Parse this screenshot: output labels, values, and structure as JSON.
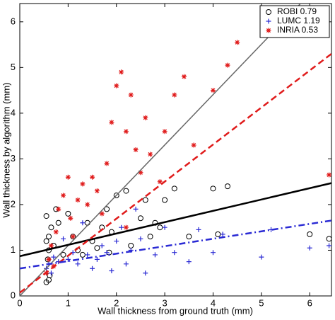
{
  "chart_data": {
    "type": "scatter",
    "xlabel": "Wall thickness from ground truth (mm)",
    "ylabel": "Wall thickness by algorithm (mm)",
    "xlim": [
      0,
      6.45
    ],
    "ylim": [
      0,
      6.4
    ],
    "xticks": [
      0,
      1,
      2,
      3,
      4,
      5,
      6
    ],
    "yticks": [
      0,
      1,
      2,
      3,
      4,
      5,
      6
    ],
    "grid": false,
    "legend": "upper right",
    "series": [
      {
        "name": "ROBI 0.79",
        "color": "#000000",
        "marker": "circle",
        "x": [
          0.55,
          0.6,
          0.62,
          0.58,
          0.6,
          0.55,
          0.6,
          0.65,
          0.55,
          0.7,
          0.75,
          0.8,
          1.0,
          1.1,
          1.2,
          1.3,
          1.4,
          1.5,
          1.6,
          1.7,
          1.8,
          1.9,
          2.0,
          2.2,
          2.3,
          2.5,
          2.6,
          2.7,
          2.8,
          3.0,
          3.2,
          3.5,
          4.0,
          4.1,
          4.3,
          6.0,
          6.4,
          0.9,
          1.85,
          2.9
        ],
        "values": [
          0.3,
          0.35,
          0.45,
          0.8,
          1.0,
          1.2,
          1.3,
          1.5,
          1.75,
          1.1,
          1.9,
          1.6,
          1.8,
          1.3,
          1.0,
          0.9,
          1.6,
          1.2,
          1.05,
          1.5,
          1.9,
          1.4,
          2.2,
          2.3,
          1.1,
          1.7,
          2.1,
          1.3,
          1.6,
          2.1,
          2.35,
          1.3,
          2.35,
          1.35,
          2.4,
          1.35,
          1.25,
          0.9,
          0.95,
          1.5
        ]
      },
      {
        "name": "LUMC 1.19",
        "color": "#2a2ad4",
        "marker": "plus",
        "x": [
          0.55,
          0.6,
          0.65,
          0.7,
          0.8,
          1.0,
          1.1,
          1.2,
          1.4,
          1.5,
          1.6,
          1.7,
          1.8,
          1.9,
          2.0,
          2.1,
          2.2,
          2.3,
          2.5,
          2.6,
          2.8,
          3.0,
          3.2,
          3.5,
          3.7,
          4.0,
          4.2,
          5.0,
          5.2,
          6.0,
          6.4,
          1.3,
          2.4,
          0.9
        ],
        "values": [
          0.6,
          0.7,
          0.5,
          0.85,
          0.75,
          0.8,
          0.95,
          0.7,
          0.9,
          0.6,
          0.8,
          1.1,
          0.95,
          0.55,
          1.2,
          1.5,
          0.7,
          1.0,
          1.25,
          0.5,
          0.9,
          1.5,
          0.95,
          0.75,
          1.45,
          0.95,
          1.35,
          0.85,
          1.45,
          1.05,
          1.1,
          1.6,
          1.9,
          1.25
        ]
      },
      {
        "name": "INRIA 0.53",
        "color": "#e01b1b",
        "marker": "asterisk",
        "x": [
          0.55,
          0.6,
          0.65,
          0.7,
          0.75,
          0.8,
          0.9,
          1.0,
          1.05,
          1.2,
          1.3,
          1.4,
          1.5,
          1.6,
          1.7,
          1.8,
          1.9,
          2.0,
          2.1,
          2.2,
          2.3,
          2.4,
          2.5,
          2.6,
          2.7,
          2.9,
          3.0,
          3.2,
          3.4,
          3.6,
          4.0,
          4.3,
          4.5,
          6.4,
          2.2,
          1.1
        ],
        "values": [
          0.5,
          0.8,
          1.1,
          0.65,
          1.4,
          1.9,
          2.2,
          2.6,
          1.7,
          2.1,
          2.45,
          2.0,
          2.6,
          2.3,
          1.8,
          2.9,
          3.8,
          4.6,
          4.9,
          3.6,
          4.4,
          3.2,
          2.7,
          3.9,
          3.1,
          2.5,
          3.6,
          4.4,
          4.8,
          3.3,
          4.5,
          5.05,
          5.55,
          2.65,
          1.5,
          1.3
        ]
      }
    ],
    "fit_lines": [
      {
        "color": "#666666",
        "dash": "solid",
        "width": 1.5,
        "x": [
          0,
          5.81
        ],
        "values": [
          0,
          6.4
        ]
      },
      {
        "color": "#000000",
        "dash": "solid",
        "width": 2.5,
        "x": [
          0,
          6.45
        ],
        "values": [
          0.87,
          2.47
        ]
      },
      {
        "color": "#e01b1b",
        "dash": "dashed",
        "width": 2.5,
        "x": [
          0,
          6.45
        ],
        "values": [
          0.07,
          5.3
        ]
      },
      {
        "color": "#2a2ad4",
        "dash": "dashdot",
        "width": 2.5,
        "x": [
          0,
          6.45
        ],
        "values": [
          0.6,
          1.65
        ]
      }
    ]
  }
}
